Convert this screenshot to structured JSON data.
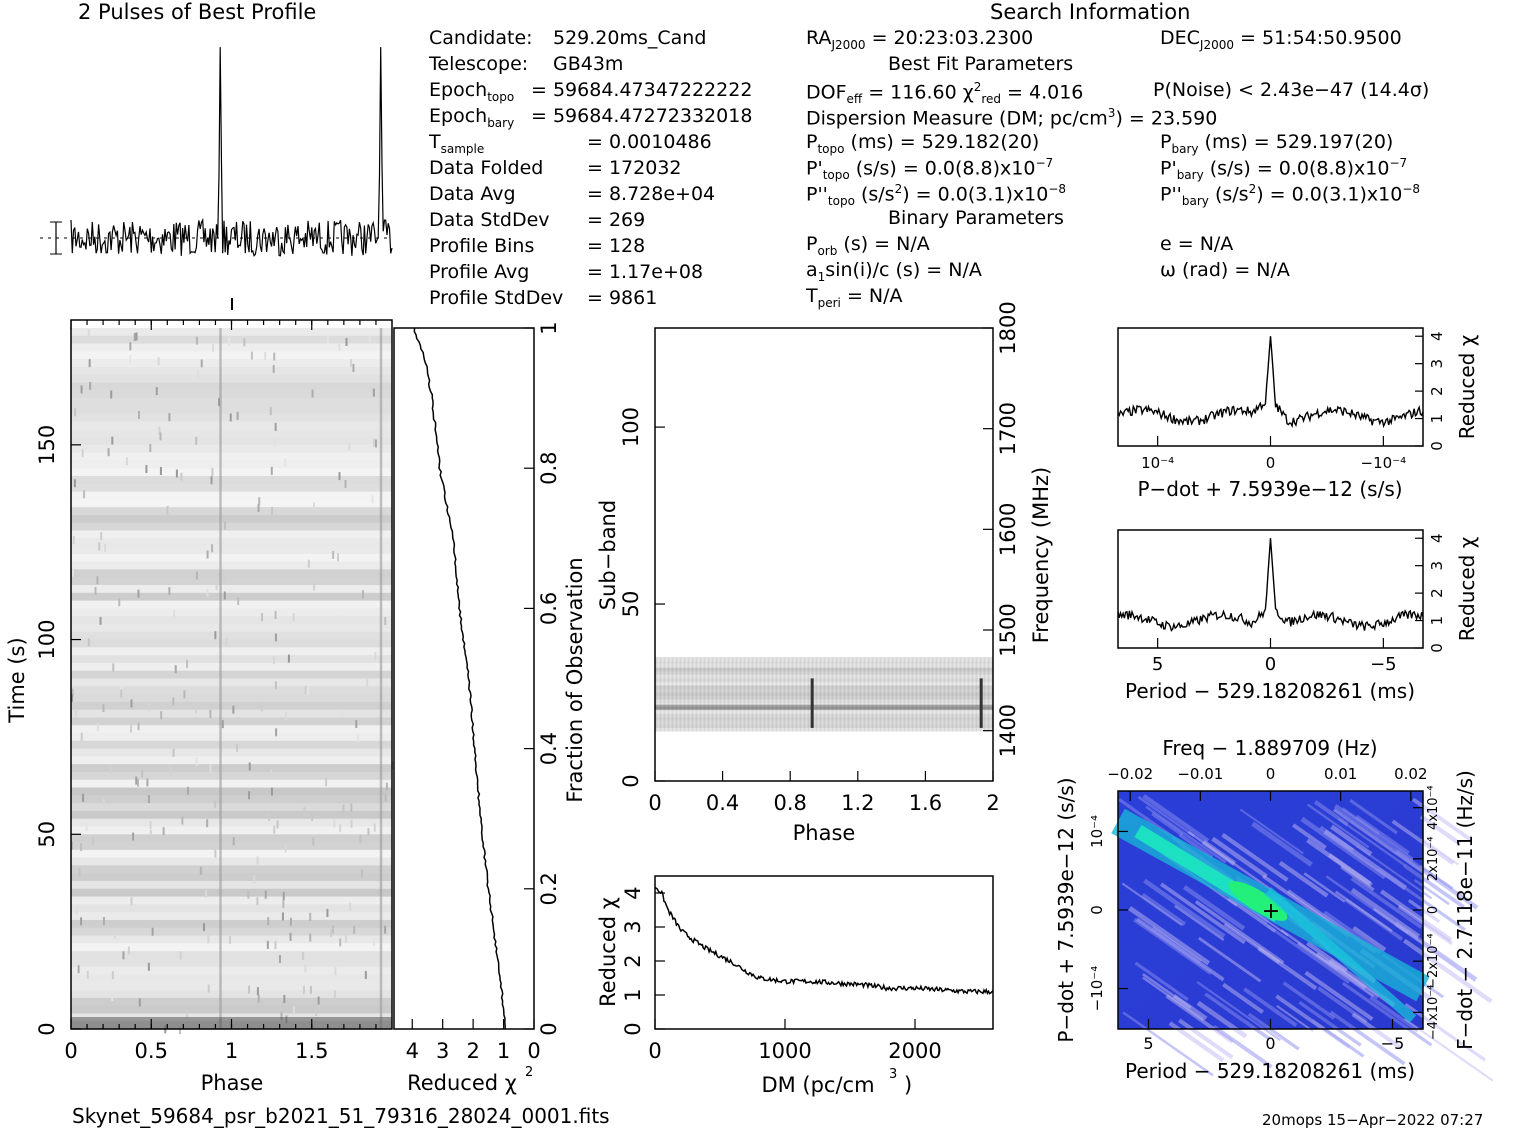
{
  "titles": {
    "profile": "2 Pulses of Best Profile",
    "search": "Search Information",
    "best_fit": "Best Fit Parameters",
    "binary": "Binary Parameters"
  },
  "info_left": [
    {
      "label": "Candidate:",
      "value": "529.20ms_Cand"
    },
    {
      "label": "Telescope:",
      "value": "GB43m"
    },
    {
      "label": "Epoch",
      "sub": "topo",
      "value": "= 59684.47347222222"
    },
    {
      "label": "Epoch",
      "sub": "bary",
      "value": "= 59684.47272332018"
    },
    {
      "label": "T",
      "sub": "sample",
      "value": "=   0.0010486"
    },
    {
      "label": "Data Folded",
      "value": "=   172032"
    },
    {
      "label": "Data Avg",
      "value": "=   8.728e+04"
    },
    {
      "label": "Data StdDev",
      "value": "=   269"
    },
    {
      "label": "Profile Bins",
      "value": "=   128"
    },
    {
      "label": "Profile Avg",
      "value": "=   1.17e+08"
    },
    {
      "label": "Profile StdDev",
      "value": "=   9861"
    }
  ],
  "search_info": {
    "ra": "= 20:23:03.2300",
    "dec": "= 51:54:50.9500",
    "dof": "DOF",
    "dof_value": "= 116.60",
    "chi2_value": "= 4.016",
    "pnoise": "P(Noise) < 2.43e−47  (14.4σ)",
    "dm": "Dispersion Measure (DM; pc/cm",
    "dm_value": ") = 23.590",
    "ptopo": "(ms) =  529.182(20)",
    "pbary": "(ms) =  529.197(20)",
    "pdot_topo": "(s/s) = 0.0(8.8)x10",
    "pdot_bary": "(s/s) = 0.0(8.8)x10",
    "pdot_exp": "−7",
    "pddot_topo": "(s/s",
    "pddot_tail": ") = 0.0(3.1)x10",
    "pddot_exp": "−8",
    "porb": "(s) = N/A",
    "e": "e = N/A",
    "a1": "a",
    "a1_tail": "sin(i)/c (s) = N/A",
    "omega": "ω (rad) = N/A",
    "tperi": "= N/A"
  },
  "axes": {
    "phase": "Phase",
    "time": "Time (s)",
    "reduced_chi2": "Reduced χ",
    "fraction": "Fraction of Observation",
    "subband": "Sub−band",
    "frequency": "Frequency (MHz)",
    "dm": "DM (pc/cm",
    "pdot_top": "P−dot + 7.5939e−12 (s/s)",
    "period_mid": "Period − 529.18208261 (ms)",
    "freq_top": "Freq − 1.889709 (Hz)",
    "period_bottom": "Period − 529.18208261 (ms)",
    "pdot_left": "P−dot + 7.5939e−12 (s/s)",
    "fdot_right": "F−dot − 2.7118e−11 (Hz/s)"
  },
  "ticks": {
    "phase_bottom": [
      "0",
      "0.5",
      "1",
      "1.5"
    ],
    "time": [
      "0",
      "50",
      "100",
      "150"
    ],
    "chi_bottom": [
      "4",
      "3",
      "2",
      "1",
      "0"
    ],
    "fraction": [
      "0",
      "0.2",
      "0.4",
      "0.6",
      "0.8",
      "1"
    ],
    "subband": [
      "0",
      "50",
      "100"
    ],
    "freq": [
      "1400",
      "1500",
      "1600",
      "1700",
      "1800"
    ],
    "phase_mid": [
      "0",
      "0.4",
      "0.8",
      "1.2",
      "1.6",
      "2"
    ],
    "dm": [
      "0",
      "1000",
      "2000"
    ],
    "chi_dm": [
      "0",
      "1",
      "2",
      "3",
      "4"
    ],
    "chi_small": [
      "0",
      "1",
      "2",
      "3",
      "4"
    ],
    "pdot_x": [
      "10⁻⁴",
      "0",
      "−10⁻⁴"
    ],
    "period_x": [
      "5",
      "0",
      "−5"
    ],
    "freq_x": [
      "−0.02",
      "−0.01",
      "0",
      "0.01",
      "0.02"
    ],
    "pdot_y": [
      "10⁻⁴",
      "0",
      "−10⁻⁴"
    ],
    "fdot_y": [
      "−4x10⁻⁴",
      "−2x10⁻⁴",
      "0",
      "2x10⁻⁴",
      "4x10⁻⁴"
    ]
  },
  "footer": {
    "filename": "Skynet_59684_psr_b2021_51_79316_28024_0001.fits",
    "stamp": "20mops 15−Apr−2022 07:27"
  },
  "chart_data": [
    {
      "type": "line",
      "title": "2 Pulses of Best Profile",
      "xlabel": "",
      "ylabel": "",
      "x_range": [
        0,
        2
      ],
      "peaks_phase": [
        0.93,
        1.93
      ]
    },
    {
      "type": "heatmap",
      "xlabel": "Phase",
      "ylabel": "Time (s)",
      "xlim": [
        0,
        2
      ],
      "ylim": [
        0,
        180
      ],
      "pulse_phase": [
        0.93,
        1.93
      ]
    },
    {
      "type": "line",
      "xlabel": "Reduced χ2",
      "ylabel": "Fraction of Observation",
      "xlim": [
        4,
        0
      ],
      "ylim": [
        0,
        1
      ],
      "fraction": [
        0.0,
        0.05,
        0.1,
        0.2,
        0.3,
        0.4,
        0.5,
        0.6,
        0.7,
        0.8,
        0.9,
        0.95,
        1.0
      ],
      "reduced_chi2": [
        0.95,
        1.05,
        1.2,
        1.5,
        1.75,
        1.95,
        2.15,
        2.45,
        2.65,
        3.1,
        3.35,
        3.55,
        3.95
      ]
    },
    {
      "type": "heatmap",
      "xlabel": "Phase",
      "ylabel": "Sub−band",
      "y2label": "Frequency (MHz)",
      "xlim": [
        0,
        2
      ],
      "ylim": [
        0,
        128
      ],
      "y2lim": [
        1350,
        1800
      ],
      "active_subbands": [
        14,
        35
      ],
      "pulse_phase": [
        0.93,
        1.93
      ]
    },
    {
      "type": "line",
      "xlabel": "DM (pc/cm3)",
      "ylabel": "Reduced χ2",
      "xlim": [
        0,
        2600
      ],
      "ylim": [
        0,
        4.5
      ],
      "x": [
        0,
        50,
        100,
        200,
        300,
        400,
        500,
        600,
        700,
        800,
        1000,
        1200,
        1400,
        1600,
        1800,
        2000,
        2200,
        2400,
        2600
      ],
      "y": [
        4.2,
        4.0,
        3.5,
        2.9,
        2.6,
        2.35,
        2.15,
        1.95,
        1.7,
        1.5,
        1.4,
        1.4,
        1.35,
        1.3,
        1.2,
        1.2,
        1.15,
        1.1,
        1.1
      ]
    },
    {
      "type": "line",
      "xlabel": "P−dot + 7.5939e−12 (s/s)",
      "ylabel": "Reduced χ2",
      "ylim": [
        0,
        4.3
      ],
      "peak": 4.0,
      "peak_x": 0,
      "baseline": 1.1
    },
    {
      "type": "line",
      "xlabel": "Period − 529.18208261 (ms)",
      "ylabel": "Reduced χ2",
      "xlim": [
        6.5,
        -6.5
      ],
      "ylim": [
        0,
        4.3
      ],
      "peak": 4.0,
      "peak_x": 0,
      "baseline": 1.0
    },
    {
      "type": "heatmap",
      "xlabel": "Period − 529.18208261 (ms)",
      "ylabel": "P−dot + 7.5939e−12 (s/s)",
      "x2label": "Freq − 1.889709 (Hz)",
      "y2label": "F−dot − 2.7118e−11 (Hz/s)",
      "xlim": [
        6.5,
        -6.5
      ],
      "x2lim": [
        -0.023,
        0.023
      ],
      "best": [
        0,
        0
      ]
    }
  ]
}
